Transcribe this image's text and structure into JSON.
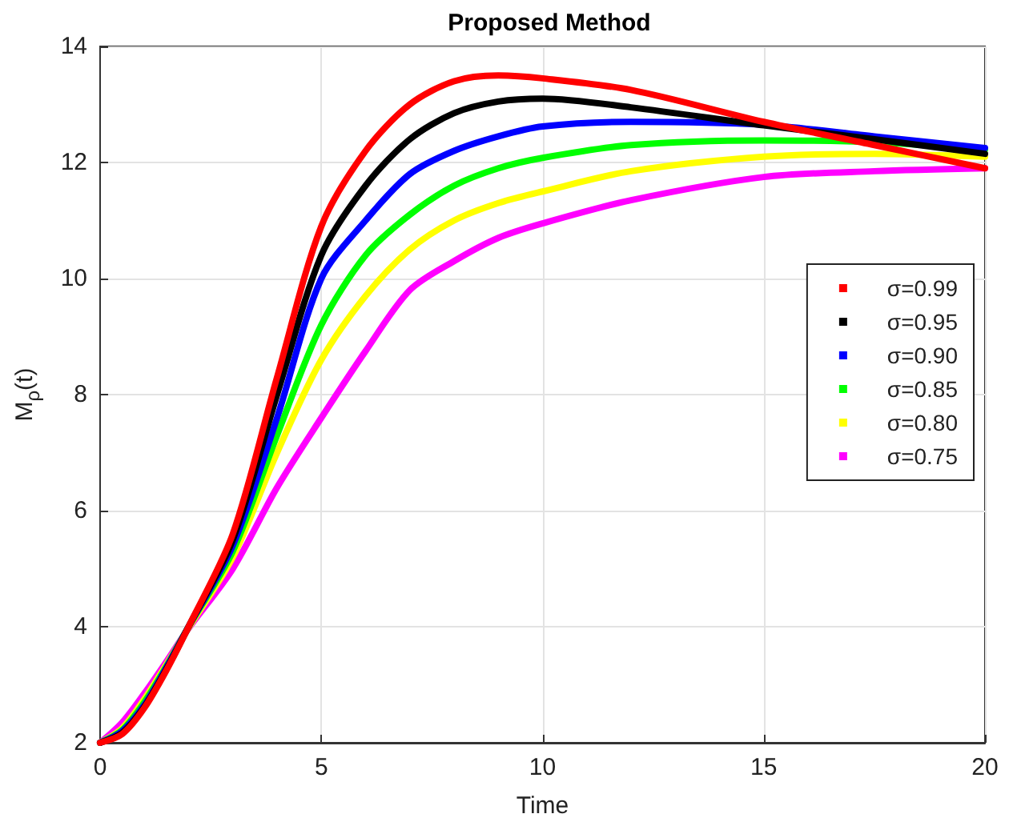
{
  "chart_data": {
    "type": "line",
    "title": "Proposed Method",
    "xlabel": "Time",
    "ylabel": "M$_{ρ}$(t)",
    "x": [
      0,
      0.5,
      1,
      1.5,
      2,
      3,
      4,
      5,
      6,
      7,
      8,
      9,
      10,
      12,
      15,
      17.5,
      20
    ],
    "series": [
      {
        "name": "σ=0.99",
        "color": "#ff0000",
        "values": [
          2,
          2.15,
          2.6,
          3.25,
          4.0,
          5.6,
          8.3,
          10.9,
          12.2,
          13.0,
          13.4,
          13.5,
          13.45,
          13.25,
          12.7,
          12.3,
          11.9
        ]
      },
      {
        "name": "σ=0.95",
        "color": "#000000",
        "values": [
          2,
          2.17,
          2.62,
          3.27,
          4.0,
          5.5,
          8.0,
          10.4,
          11.6,
          12.4,
          12.85,
          13.05,
          13.1,
          12.95,
          12.64,
          12.4,
          12.15
        ]
      },
      {
        "name": "σ=0.90",
        "color": "#0000ff",
        "values": [
          2,
          2.2,
          2.65,
          3.3,
          4.0,
          5.4,
          7.6,
          10.0,
          11.0,
          11.8,
          12.2,
          12.45,
          12.62,
          12.7,
          12.65,
          12.45,
          12.25
        ]
      },
      {
        "name": "σ=0.85",
        "color": "#00ff00",
        "values": [
          2,
          2.22,
          2.7,
          3.32,
          4.0,
          5.3,
          7.3,
          9.2,
          10.4,
          11.1,
          11.6,
          11.9,
          12.08,
          12.3,
          12.38,
          12.35,
          12.22
        ]
      },
      {
        "name": "σ=0.80",
        "color": "#ffff00",
        "values": [
          2,
          2.25,
          2.75,
          3.35,
          3.98,
          5.2,
          7.0,
          8.6,
          9.7,
          10.5,
          11.0,
          11.3,
          11.5,
          11.85,
          12.1,
          12.15,
          12.1
        ]
      },
      {
        "name": "σ=0.75",
        "color": "#ff00ff",
        "values": [
          2,
          2.35,
          2.85,
          3.4,
          3.97,
          5.0,
          6.4,
          7.6,
          8.75,
          9.8,
          10.3,
          10.7,
          10.95,
          11.35,
          11.75,
          11.85,
          11.9
        ]
      }
    ],
    "xlim": [
      0,
      20
    ],
    "xticks": [
      0,
      5,
      10,
      15,
      20
    ],
    "ylim": [
      2,
      14
    ],
    "yticks": [
      2,
      4,
      6,
      8,
      10,
      12,
      14
    ],
    "grid": true,
    "legend": "right",
    "marker": "none",
    "line_style": "solid"
  }
}
